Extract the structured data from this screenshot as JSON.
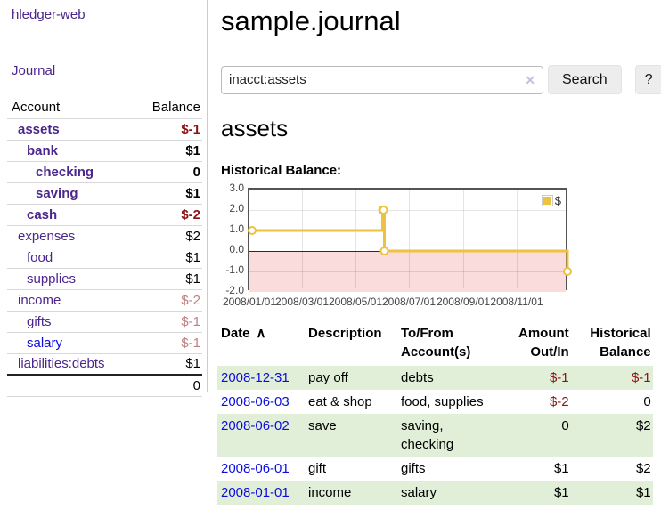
{
  "app": {
    "brand": "hledger-web",
    "nav_journal": "Journal"
  },
  "colors": {
    "visited_link_purple": "#4b268c",
    "link_blue": "#0c0cdf",
    "negative_red": "#8b1515",
    "faded_negative_red": "#c08080",
    "row_stripe_green": "#e1efd9",
    "series_yellow": "#edc240",
    "negative_region_pink": "#fbdcdc",
    "zero_line_dark_red": "#8b0000"
  },
  "sidebar": {
    "headers": {
      "account": "Account",
      "balance": "Balance"
    },
    "accounts": [
      {
        "name": "assets",
        "balance": "$-1"
      },
      {
        "name": "bank",
        "balance": "$1"
      },
      {
        "name": "checking",
        "balance": "0"
      },
      {
        "name": "saving",
        "balance": "$1"
      },
      {
        "name": "cash",
        "balance": "$-2"
      },
      {
        "name": "expenses",
        "balance": "$2"
      },
      {
        "name": "food",
        "balance": "$1"
      },
      {
        "name": "supplies",
        "balance": "$1"
      },
      {
        "name": "income",
        "balance": "$-2"
      },
      {
        "name": "gifts",
        "balance": "$-1"
      },
      {
        "name": "salary",
        "balance": "$-1"
      },
      {
        "name": "liabilities:debts",
        "balance": "$1"
      }
    ],
    "total": "0"
  },
  "header": {
    "title": "sample.journal"
  },
  "search": {
    "value": "inacct:assets",
    "clear_icon": "✕",
    "button": "Search",
    "help_button": "?"
  },
  "account_page": {
    "heading": "assets",
    "chart_label": "Historical Balance:"
  },
  "chart_data": {
    "type": "line",
    "title": "Historical Balance:",
    "steps": true,
    "legend": "$",
    "legend_position": "top-right",
    "grid": true,
    "x_range": [
      "2008-01-01",
      "2008-12-31"
    ],
    "y_range": [
      -2.0,
      3.0
    ],
    "series": [
      {
        "name": "$",
        "color": "#edc240",
        "points": [
          {
            "x": "2008-01-01",
            "y": 1.0
          },
          {
            "x": "2008-06-01",
            "y": 2.0
          },
          {
            "x": "2008-06-02",
            "y": 2.0
          },
          {
            "x": "2008-06-03",
            "y": 0.0
          },
          {
            "x": "2008-12-31",
            "y": -1.0
          }
        ]
      }
    ],
    "x_ticks": [
      {
        "x": "2008-01-01",
        "label": "2008/01/01"
      },
      {
        "x": "2008-03-01",
        "label": "2008/03/01"
      },
      {
        "x": "2008-05-01",
        "label": "2008/05/01"
      },
      {
        "x": "2008-07-01",
        "label": "2008/07/01"
      },
      {
        "x": "2008-09-01",
        "label": "2008/09/01"
      },
      {
        "x": "2008-11-01",
        "label": "2008/11/01"
      }
    ],
    "y_ticks": [
      {
        "v": 3.0,
        "label": "3.0"
      },
      {
        "v": 2.0,
        "label": "2.0"
      },
      {
        "v": 1.0,
        "label": "1.0"
      },
      {
        "v": 0.0,
        "label": "0.0"
      },
      {
        "v": -1.0,
        "label": "-1.0"
      },
      {
        "v": -2.0,
        "label": "-2.0"
      }
    ]
  },
  "register": {
    "headers": {
      "date": "Date",
      "sort_indicator": "∧",
      "description": "Description",
      "tofrom_line1": "To/From",
      "tofrom_line2": "Account(s)",
      "amount_line1": "Amount",
      "amount_line2": "Out/In",
      "hist_line1": "Historical",
      "hist_line2": "Balance"
    },
    "rows": [
      {
        "date": "2008-12-31",
        "description": "pay off",
        "accounts": "debts",
        "amount": "$-1",
        "balance": "$-1"
      },
      {
        "date": "2008-06-03",
        "description": "eat & shop",
        "accounts": "food, supplies",
        "amount": "$-2",
        "balance": "0"
      },
      {
        "date": "2008-06-02",
        "description": "save",
        "accounts": "saving,\nchecking",
        "amount": "0",
        "balance": "$2"
      },
      {
        "date": "2008-06-01",
        "description": "gift",
        "accounts": "gifts",
        "amount": "$1",
        "balance": "$2"
      },
      {
        "date": "2008-01-01",
        "description": "income",
        "accounts": "salary",
        "amount": "$1",
        "balance": "$1"
      }
    ]
  }
}
